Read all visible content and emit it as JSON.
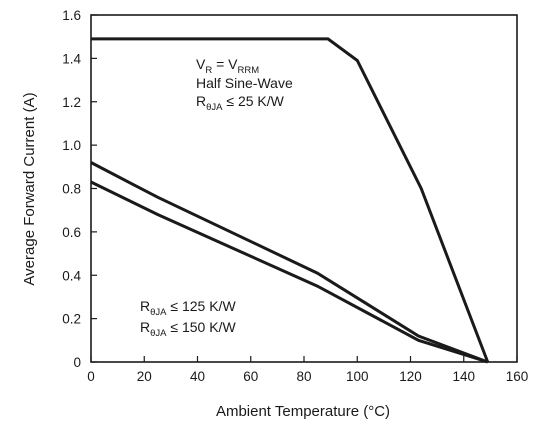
{
  "chart_data": {
    "type": "line",
    "xlabel": "Ambient Temperature (°C)",
    "ylabel": "Average Forward Current (A)",
    "xlim": [
      0,
      160
    ],
    "ylim": [
      0,
      1.6
    ],
    "x_ticks": [
      "0",
      "20",
      "40",
      "60",
      "80",
      "100",
      "120",
      "140",
      "160"
    ],
    "y_ticks": [
      "0",
      "0.2",
      "0.4",
      "0.6",
      "0.8",
      "1.0",
      "1.2",
      "1.4",
      "1.6"
    ],
    "grid": false,
    "line_color": "#1a1a1a",
    "series": [
      {
        "points": [
          [
            0,
            1.49
          ],
          [
            89,
            1.49
          ],
          [
            100,
            1.39
          ],
          [
            124,
            0.8
          ],
          [
            149,
            0.0
          ]
        ]
      },
      {
        "points": [
          [
            0,
            0.92
          ],
          [
            25,
            0.76
          ],
          [
            85,
            0.41
          ],
          [
            123,
            0.12
          ],
          [
            149,
            0.0
          ]
        ]
      },
      {
        "points": [
          [
            0,
            0.83
          ],
          [
            25,
            0.68
          ],
          [
            85,
            0.35
          ],
          [
            123,
            0.1
          ],
          [
            149,
            0.0
          ]
        ]
      }
    ],
    "annotations": {
      "top": {
        "line1": {
          "a": "V",
          "a_sub": "R",
          "eq": " = V",
          "b_sub": "RRM"
        },
        "line2": "Half Sine-Wave",
        "line3": {
          "r": "R",
          "r_sub": "θJA",
          "rest": " ≤ 25 K/W"
        }
      },
      "bottom": {
        "line1": {
          "r": "R",
          "r_sub": "θJA",
          "rest": " ≤ 125 K/W"
        },
        "line2": {
          "r": "R",
          "r_sub": "θJA",
          "rest": " ≤ 150 K/W"
        }
      }
    }
  }
}
